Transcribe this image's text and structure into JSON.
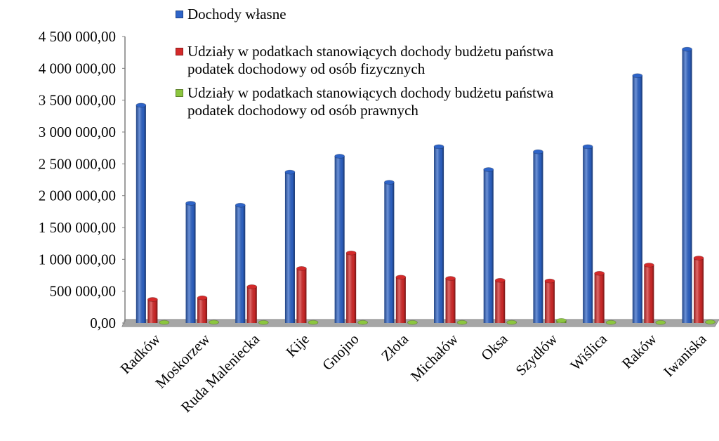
{
  "chart_data": {
    "type": "bar",
    "categories": [
      "Radków",
      "Moskorzew",
      "Ruda Maleniecka",
      "Kije",
      "Gnojno",
      "Złota",
      "Michałów",
      "Oksa",
      "Szydłów",
      "Wiślica",
      "Raków",
      "Iwaniska"
    ],
    "series": [
      {
        "name": "Dochody własne",
        "color": "#2e64c8",
        "values": [
          3420000,
          1880000,
          1850000,
          2370000,
          2620000,
          2210000,
          2770000,
          2410000,
          2690000,
          2770000,
          3885000,
          4300000
        ]
      },
      {
        "name": "Udziały w podatkach stanowiących dochody budżetu państwa podatek dochodowy od osób fizycznych",
        "color": "#d42a2a",
        "values": [
          370000,
          395000,
          570000,
          856000,
          1100000,
          720000,
          700000,
          670000,
          660000,
          780000,
          910000,
          1020000
        ]
      },
      {
        "name": "Udziały w podatkach stanowiących dochody budżetu państwa podatek dochodowy od osób prawnych",
        "color": "#8cc63f",
        "values": [
          10000,
          12000,
          8000,
          10000,
          9000,
          8000,
          9000,
          10000,
          40000,
          9000,
          8000,
          15000
        ]
      }
    ],
    "ylim": [
      0,
      4500000
    ],
    "yticks": [
      {
        "value": 0,
        "label": "0,00"
      },
      {
        "value": 500000,
        "label": "500 000,00"
      },
      {
        "value": 1000000,
        "label": "1 000 000,00"
      },
      {
        "value": 1500000,
        "label": "1 500 000,00"
      },
      {
        "value": 2000000,
        "label": "2 000 000,00"
      },
      {
        "value": 2500000,
        "label": "2 500 000,00"
      },
      {
        "value": 3000000,
        "label": "3 000 000,00"
      },
      {
        "value": 3500000,
        "label": "3 500 000,00"
      },
      {
        "value": 4000000,
        "label": "4 000 000,00"
      },
      {
        "value": 4500000,
        "label": "4 500 000,00"
      }
    ],
    "grid": false
  }
}
